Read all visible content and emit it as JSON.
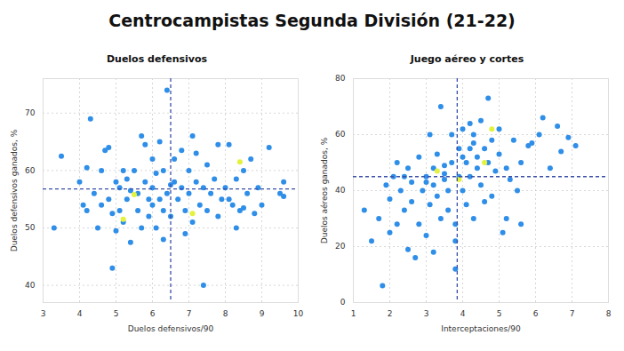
{
  "title": "Centrocampistas Segunda División (21-22)",
  "chart_data": [
    {
      "type": "scatter",
      "title": "Duelos defensivos",
      "x_label": "Duelos defensivos/90",
      "y_label": "Duelos defensivos ganados, %",
      "xlim": [
        3,
        10
      ],
      "xticks": [
        3,
        4,
        5,
        6,
        7,
        8,
        9,
        10
      ],
      "ylim": [
        37,
        76
      ],
      "yticks": [
        40,
        50,
        60,
        70
      ],
      "grid": true,
      "average": {
        "x": 6.5,
        "y": 56.8
      },
      "series": [
        {
          "color": "#2e8ee8",
          "x": [
            3.3,
            3.5,
            4.0,
            4.1,
            4.2,
            4.3,
            4.4,
            4.5,
            4.6,
            4.7,
            4.8,
            4.9,
            4.8,
            4.6,
            4.9,
            5.0,
            5.1,
            5.1,
            5.2,
            5.2,
            5.3,
            5.3,
            5.4,
            5.4,
            5.5,
            5.6,
            5.6,
            5.7,
            5.7,
            5.8,
            5.8,
            5.9,
            5.9,
            6.0,
            6.0,
            6.1,
            6.1,
            6.2,
            6.2,
            6.3,
            6.3,
            6.4,
            6.4,
            6.5,
            6.6,
            6.6,
            6.7,
            6.8,
            6.8,
            6.9,
            7.0,
            7.0,
            7.1,
            7.1,
            7.2,
            7.3,
            7.4,
            7.4,
            7.5,
            7.5,
            7.6,
            7.7,
            7.8,
            7.9,
            8.0,
            8.1,
            8.2,
            8.3,
            8.3,
            8.4,
            8.5,
            8.6,
            8.7,
            8.8,
            8.9,
            9.0,
            9.2,
            9.5,
            9.6,
            9.6,
            6.0,
            6.5,
            7.2,
            4.2,
            5.0,
            6.9,
            7.8,
            8.5,
            6.3,
            8.1
          ],
          "values": [
            50,
            62.5,
            58,
            54,
            53,
            69,
            56,
            50,
            60,
            63.5,
            64,
            52.5,
            55,
            54,
            43,
            58,
            57,
            53,
            60,
            51,
            55,
            58.5,
            56.5,
            47.5,
            60,
            56,
            53,
            66,
            50,
            58,
            64.5,
            55,
            52,
            62,
            57,
            59.5,
            50,
            55,
            65,
            60,
            48,
            74,
            56,
            52,
            58,
            62,
            55,
            57,
            63.5,
            53,
            56,
            60,
            66,
            51,
            58,
            54,
            40,
            57,
            61,
            53,
            56,
            58.5,
            52,
            55,
            57,
            64.5,
            54,
            50,
            58.5,
            53,
            60,
            56,
            62,
            52.5,
            57,
            54,
            64,
            56,
            58,
            55.5,
            54,
            57.5,
            63,
            60.5,
            49.5,
            49,
            64.5,
            53.5,
            53,
            55
          ]
        },
        {
          "color": "#e3f23c",
          "x": [
            5.5,
            5.2,
            7.1,
            8.4
          ],
          "values": [
            55.8,
            51.5,
            52.5,
            61.5
          ]
        }
      ]
    },
    {
      "type": "scatter",
      "title": "Juego aéreo y cortes",
      "x_label": "Interceptaciones/90",
      "y_label": "Duelos aéreos ganados, %",
      "xlim": [
        1,
        8
      ],
      "xticks": [
        1,
        2,
        3,
        4,
        5,
        6,
        7,
        8
      ],
      "ylim": [
        0,
        80
      ],
      "yticks": [
        0,
        20,
        40,
        60,
        80
      ],
      "grid": true,
      "average": {
        "x": 3.85,
        "y": 45
      },
      "series": [
        {
          "color": "#2e8ee8",
          "x": [
            1.3,
            1.5,
            1.7,
            1.8,
            1.9,
            2.0,
            2.0,
            2.1,
            2.2,
            2.2,
            2.3,
            2.4,
            2.5,
            2.5,
            2.6,
            2.6,
            2.7,
            2.8,
            2.8,
            2.9,
            3.0,
            3.0,
            3.1,
            3.1,
            3.2,
            3.2,
            3.3,
            3.3,
            3.4,
            3.4,
            3.5,
            3.5,
            3.6,
            3.6,
            3.7,
            3.7,
            3.8,
            3.8,
            3.9,
            3.9,
            4.0,
            4.0,
            4.1,
            4.1,
            4.2,
            4.2,
            4.3,
            4.3,
            4.4,
            4.4,
            4.5,
            4.5,
            4.6,
            4.7,
            4.7,
            4.8,
            4.8,
            4.9,
            5.0,
            5.0,
            5.1,
            5.2,
            5.3,
            5.4,
            5.5,
            5.6,
            5.6,
            5.8,
            5.9,
            6.1,
            6.2,
            6.4,
            6.6,
            6.7,
            6.9,
            7.1,
            3.0,
            3.5,
            4.0,
            4.3,
            2.4,
            3.8,
            4.6,
            5.2,
            3.2,
            4.2
          ],
          "values": [
            33,
            22,
            30,
            6,
            42,
            25,
            37,
            45,
            50,
            28,
            40,
            33,
            48,
            19,
            36,
            43,
            16,
            28,
            52,
            40,
            45,
            24,
            60,
            35,
            48,
            42,
            38,
            53,
            70,
            30,
            44,
            46,
            40,
            33,
            50,
            60,
            28,
            22,
            45,
            55,
            62,
            40,
            50,
            35,
            55,
            45,
            60,
            30,
            52,
            48,
            65,
            42,
            55,
            73,
            50,
            38,
            58,
            47,
            53,
            62,
            25,
            48,
            44,
            58,
            40,
            50,
            28,
            56,
            57,
            60,
            66,
            48,
            63,
            54,
            59,
            56,
            43,
            49,
            52,
            57,
            45,
            12,
            36,
            30,
            18,
            64
          ]
        },
        {
          "color": "#e3f23c",
          "x": [
            3.3,
            3.9,
            4.6,
            4.8
          ],
          "values": [
            47,
            44,
            50,
            62
          ]
        }
      ]
    }
  ]
}
